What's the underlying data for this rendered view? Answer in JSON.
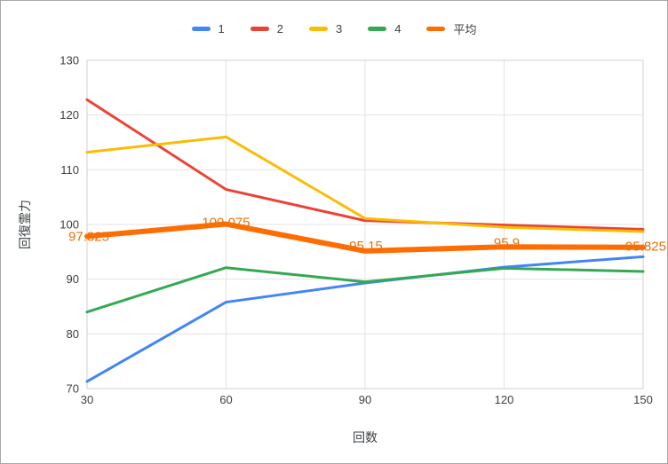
{
  "frame": {
    "background": "#ffffff",
    "border_color": "#a9a9a9"
  },
  "chart_data": {
    "type": "line",
    "title": "",
    "xlabel": "回数",
    "ylabel": "回復霊力",
    "x": [
      30,
      60,
      90,
      120,
      150
    ],
    "ylim": [
      70,
      130
    ],
    "ytick_step": 10,
    "grid": true,
    "legend_position": "top",
    "gridline_color": "#e3e3e3",
    "plot_border_color": "#d0d0d0",
    "tick_label_color": "#3c4043",
    "series": [
      {
        "name": "1",
        "color": "#4285F4",
        "width": 3,
        "values": [
          71.3,
          85.8,
          89.3,
          92.2,
          94.1
        ]
      },
      {
        "name": "2",
        "color": "#EA4335",
        "width": 3,
        "values": [
          122.8,
          106.4,
          100.7,
          99.9,
          99.1
        ]
      },
      {
        "name": "3",
        "color": "#FBBC04",
        "width": 3,
        "values": [
          113.2,
          116.0,
          101.1,
          99.5,
          98.7
        ]
      },
      {
        "name": "4",
        "color": "#34A853",
        "width": 3,
        "values": [
          84.0,
          92.1,
          89.5,
          92.0,
          91.4
        ]
      },
      {
        "name": "平均",
        "color": "#FF6D01",
        "width": 6,
        "values": [
          97.825,
          100.075,
          95.15,
          95.9,
          95.825
        ],
        "data_labels": [
          "97.825",
          "100.075",
          "95.15",
          "95.9",
          "95.825"
        ],
        "label_color": "#E8710A"
      }
    ]
  }
}
